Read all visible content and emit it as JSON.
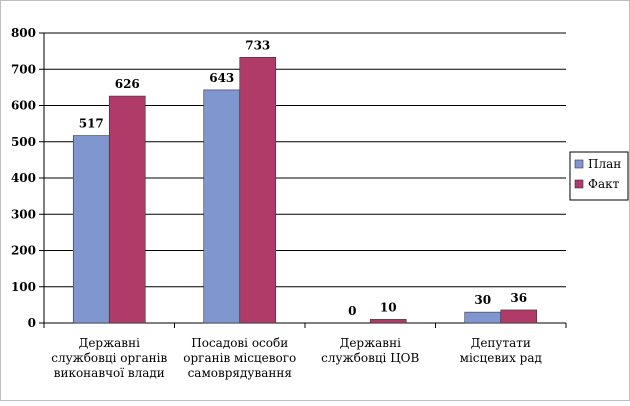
{
  "chart_data": {
    "type": "bar",
    "categories": [
      [
        "Державні",
        "службовці органів",
        "виконавчої влади"
      ],
      [
        "Посадові особи",
        "органів місцевого",
        "самоврядування"
      ],
      [
        "Державні",
        "службовці ЦОВ"
      ],
      [
        "Депутати",
        "місцевих рад"
      ]
    ],
    "series": [
      {
        "name": "План",
        "values": [
          517,
          643,
          0,
          30
        ],
        "color": "#8096cf"
      },
      {
        "name": "Факт",
        "values": [
          626,
          733,
          10,
          36
        ],
        "color": "#b03a68"
      }
    ],
    "ylim": [
      0,
      800
    ],
    "yticks": [
      0,
      100,
      200,
      300,
      400,
      500,
      600,
      700,
      800
    ],
    "grid": true,
    "legend_position": "right"
  }
}
